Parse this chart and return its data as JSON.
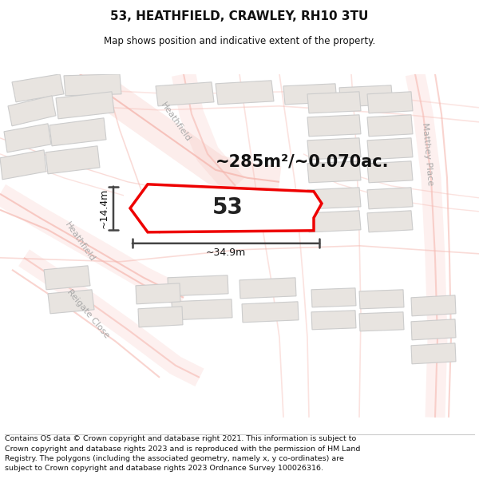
{
  "title": "53, HEATHFIELD, CRAWLEY, RH10 3TU",
  "subtitle": "Map shows position and indicative extent of the property.",
  "area_text": "~285m²/~0.070ac.",
  "number_label": "53",
  "dim_width": "~34.9m",
  "dim_height": "~14.4m",
  "footer": "Contains OS data © Crown copyright and database right 2021. This information is subject to Crown copyright and database rights 2023 and is reproduced with the permission of HM Land Registry. The polygons (including the associated geometry, namely x, y co-ordinates) are subject to Crown copyright and database rights 2023 Ordnance Survey 100026316.",
  "map_bg": "#ffffff",
  "building_fill": "#e8e4e0",
  "building_stroke": "#cccccc",
  "road_line_color": "#f5b8b0",
  "road_border_color": "#e8e0dc",
  "highlight_color": "#ee0000",
  "dim_line_color": "#444444",
  "street_label_color": "#aaaaaa",
  "title_color": "#111111",
  "footer_color": "#111111"
}
